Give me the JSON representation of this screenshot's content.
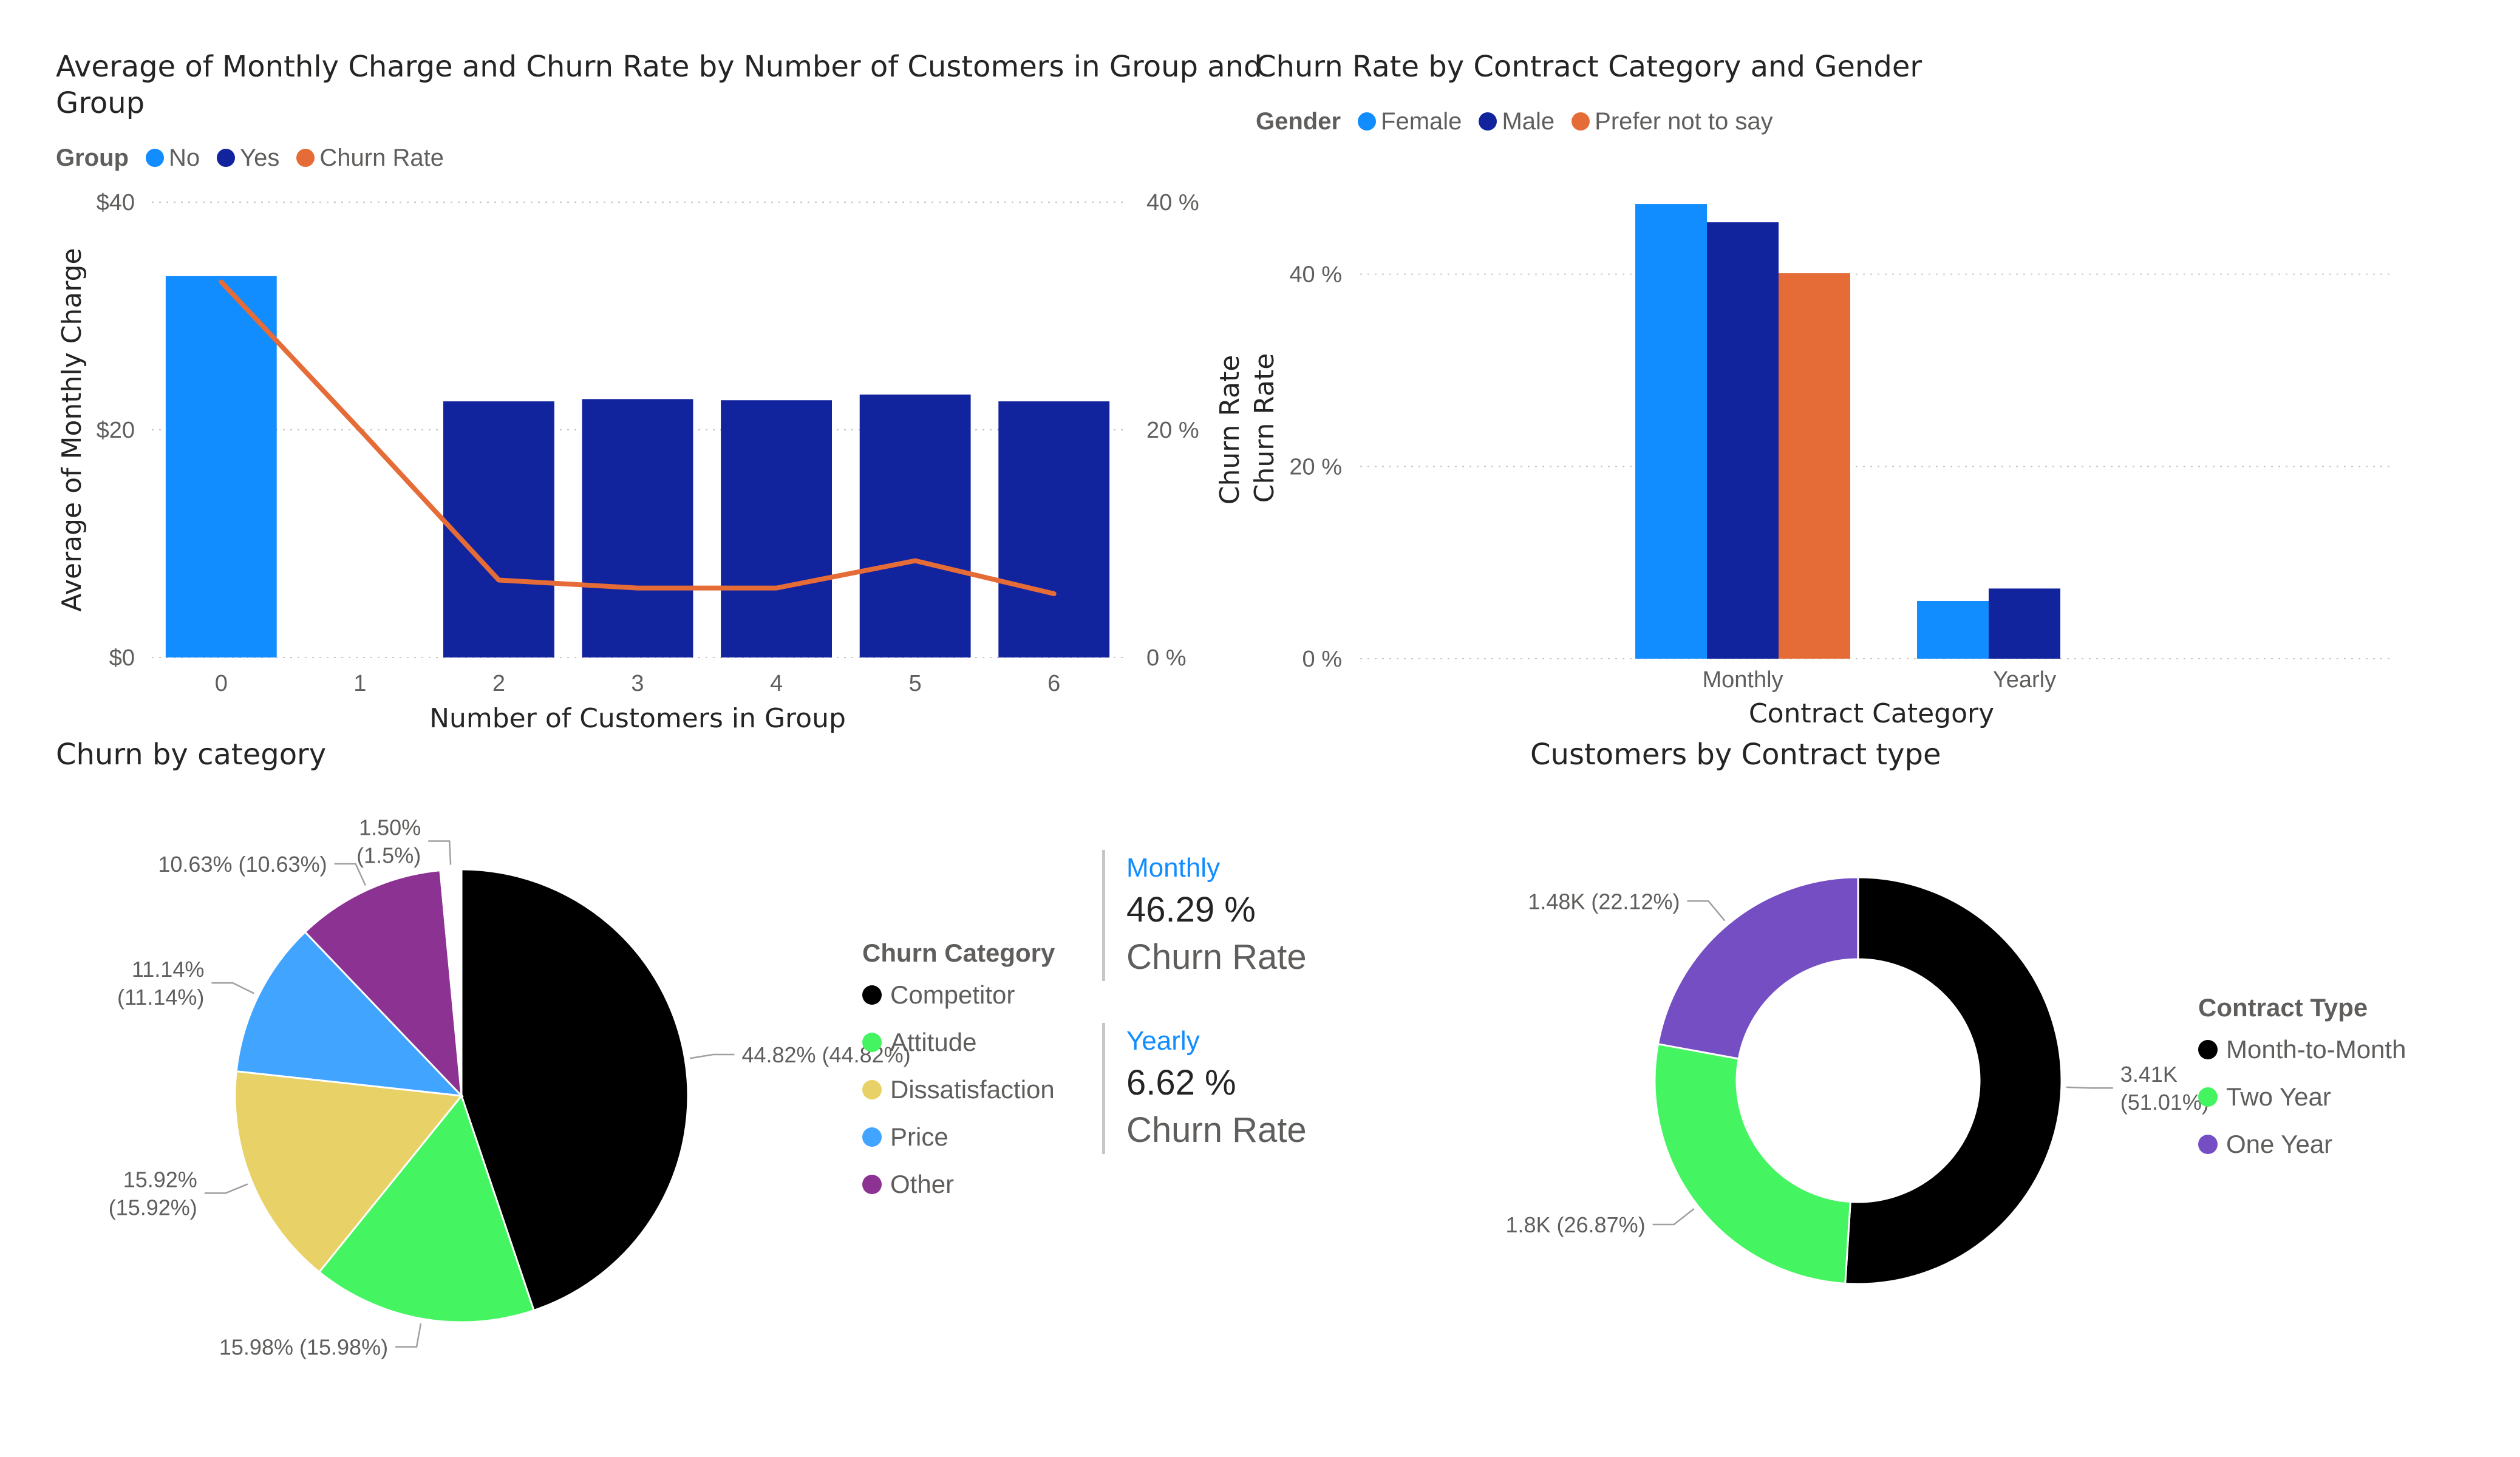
{
  "charts": {
    "combo": {
      "title_line1": "Average of Monthly Charge and Churn Rate by Number of Customers in Group and",
      "title_line2": "Group",
      "legend_title": "Group",
      "legend": [
        {
          "label": "No",
          "color": "#118dff"
        },
        {
          "label": "Yes",
          "color": "#12239e"
        },
        {
          "label": "Churn Rate",
          "color": "#e66c37"
        }
      ]
    },
    "gender": {
      "title": "Churn Rate by Contract Category and Gender",
      "legend_title": "Gender",
      "legend": [
        {
          "label": "Female",
          "color": "#118dff"
        },
        {
          "label": "Male",
          "color": "#12239e"
        },
        {
          "label": "Prefer not to say",
          "color": "#e66c37"
        }
      ]
    },
    "pie": {
      "title": "Churn by category",
      "legend_title": "Churn Category",
      "legend": [
        {
          "label": "Competitor",
          "color": "#000000"
        },
        {
          "label": "Attitude",
          "color": "#44f561"
        },
        {
          "label": "Dissatisfaction",
          "color": "#e8d166"
        },
        {
          "label": "Price",
          "color": "#41a4ff"
        },
        {
          "label": "Other",
          "color": "#8b3293"
        }
      ]
    },
    "donut": {
      "title": "Customers by Contract type",
      "legend_title": "Contract Type",
      "legend": [
        {
          "label": "Month-to-Month",
          "color": "#000000"
        },
        {
          "label": "Two Year",
          "color": "#44f561"
        },
        {
          "label": "One Year",
          "color": "#744ec2"
        }
      ]
    }
  },
  "cards": [
    {
      "label": "Monthly",
      "value": "46.29 %",
      "sub": "Churn Rate"
    },
    {
      "label": "Yearly",
      "value": "6.62 %",
      "sub": "Churn Rate"
    }
  ],
  "chart_data": [
    {
      "type": "bar",
      "title": "Average of Monthly Charge and Churn Rate by Number of Customers in Group and Group",
      "xlabel": "Number of Customers in Group",
      "ylabel": "Average of Monthly Charge",
      "y2label": "Churn Rate",
      "categories": [
        "0",
        "1",
        "2",
        "3",
        "4",
        "5",
        "6"
      ],
      "y_ticks": [
        "$0",
        "$20",
        "$40"
      ],
      "y2_ticks": [
        "0 %",
        "20 %",
        "40 %"
      ],
      "ylim": [
        0,
        40
      ],
      "y2lim": [
        0,
        40
      ],
      "series": [
        {
          "name": "No",
          "type": "bar",
          "color": "#118dff",
          "values": [
            33.5,
            null,
            null,
            null,
            null,
            null,
            null
          ]
        },
        {
          "name": "Yes",
          "type": "bar",
          "color": "#12239e",
          "values": [
            null,
            null,
            22.5,
            22.7,
            22.6,
            23.1,
            22.5
          ]
        },
        {
          "name": "Churn Rate",
          "type": "line",
          "axis": "y2",
          "color": "#e66c37",
          "values": [
            33,
            20,
            6.8,
            6.1,
            6.1,
            8.5,
            5.6
          ]
        }
      ],
      "grid": true,
      "legend": "top-left"
    },
    {
      "type": "bar",
      "title": "Churn Rate by Contract Category and Gender",
      "xlabel": "Contract Category",
      "ylabel": "Churn Rate",
      "categories": [
        "Monthly",
        "Yearly"
      ],
      "y_ticks": [
        "0 %",
        "20 %",
        "40 %"
      ],
      "ylim": [
        0,
        48
      ],
      "series": [
        {
          "name": "Female",
          "color": "#118dff",
          "values": [
            47.3,
            6.0
          ]
        },
        {
          "name": "Male",
          "color": "#12239e",
          "values": [
            45.4,
            7.3
          ]
        },
        {
          "name": "Prefer not to say",
          "color": "#e66c37",
          "values": [
            40.1,
            null
          ]
        }
      ],
      "grid": true,
      "legend": "top-left"
    },
    {
      "type": "pie",
      "title": "Churn by category",
      "slices": [
        {
          "name": "Competitor",
          "value": 44.82,
          "color": "#000000",
          "label_lines": [
            "44.82% (44.82%)"
          ]
        },
        {
          "name": "Attitude",
          "value": 15.98,
          "color": "#44f561",
          "label_lines": [
            "15.98% (15.98%)"
          ]
        },
        {
          "name": "Dissatisfaction",
          "value": 15.92,
          "color": "#e8d166",
          "label_lines": [
            "15.92%",
            "(15.92%)"
          ]
        },
        {
          "name": "Price",
          "value": 11.14,
          "color": "#41a4ff",
          "label_lines": [
            "11.14%",
            "(11.14%)"
          ]
        },
        {
          "name": "Other",
          "value": 10.63,
          "color": "#8b3293",
          "label_lines": [
            "10.63% (10.63%)"
          ]
        },
        {
          "name": "",
          "value": 1.5,
          "color": "#ffffff",
          "label_lines": [
            "1.50%",
            "(1.5%)"
          ]
        }
      ],
      "legend": "right"
    },
    {
      "type": "pie",
      "title": "Customers by Contract type",
      "donut": true,
      "slices": [
        {
          "name": "Month-to-Month",
          "value": 51.01,
          "color": "#000000",
          "label_lines": [
            "3.41K",
            "(51.01%)"
          ]
        },
        {
          "name": "Two Year",
          "value": 26.87,
          "color": "#44f561",
          "label_lines": [
            "1.8K (26.87%)"
          ]
        },
        {
          "name": "One Year",
          "value": 22.12,
          "color": "#744ec2",
          "label_lines": [
            "1.48K (22.12%)"
          ]
        }
      ],
      "legend": "right"
    }
  ]
}
